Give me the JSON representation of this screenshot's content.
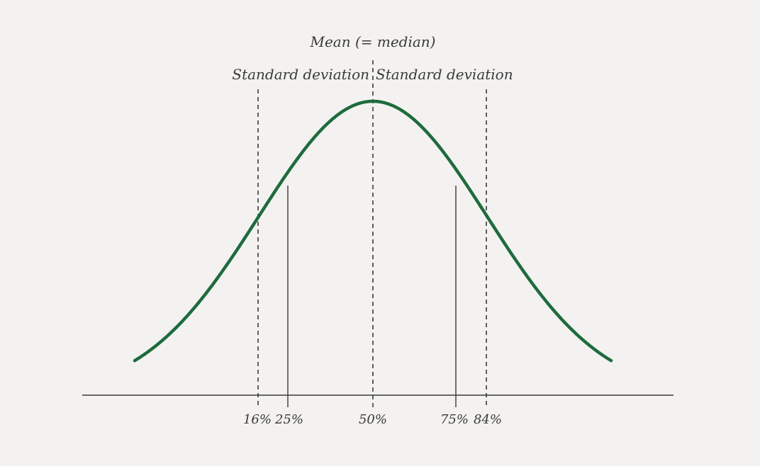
{
  "labels": {
    "mean": "Mean (= median)",
    "sd_left": "Standard deviation",
    "sd_right": "Standard deviation"
  },
  "percentiles": [
    "16%",
    "25%",
    "50%",
    "75%",
    "84%"
  ],
  "colors": {
    "background": "#f3f2f0",
    "curve": "#1e6b3d",
    "lines": "#3a3a3a",
    "text": "#3a3a3a"
  }
}
